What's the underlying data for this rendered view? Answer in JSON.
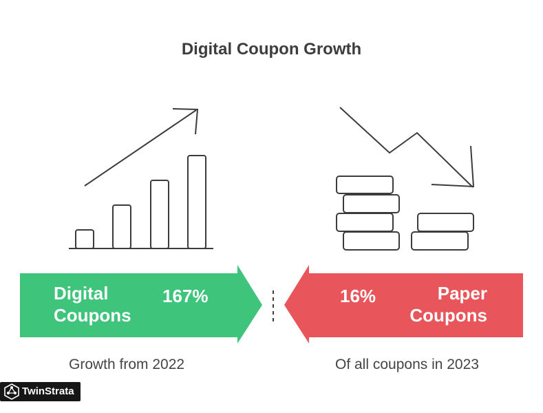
{
  "title": "Digital Coupon Growth",
  "digital": {
    "label_line1": "Digital",
    "label_line2": "Coupons",
    "value": "167%",
    "caption": "Growth from 2022",
    "color": "#3fc47c"
  },
  "paper": {
    "label_line1": "Paper",
    "label_line2": "Coupons",
    "value": "16%",
    "caption": "Of all coupons in 2023",
    "color": "#e8555a"
  },
  "icons": {
    "left": "bar-chart-up-icon",
    "right": "coin-stacks-down-icon"
  },
  "logo": {
    "text": "TwinStrata",
    "icon": "network-hexagon-icon"
  }
}
